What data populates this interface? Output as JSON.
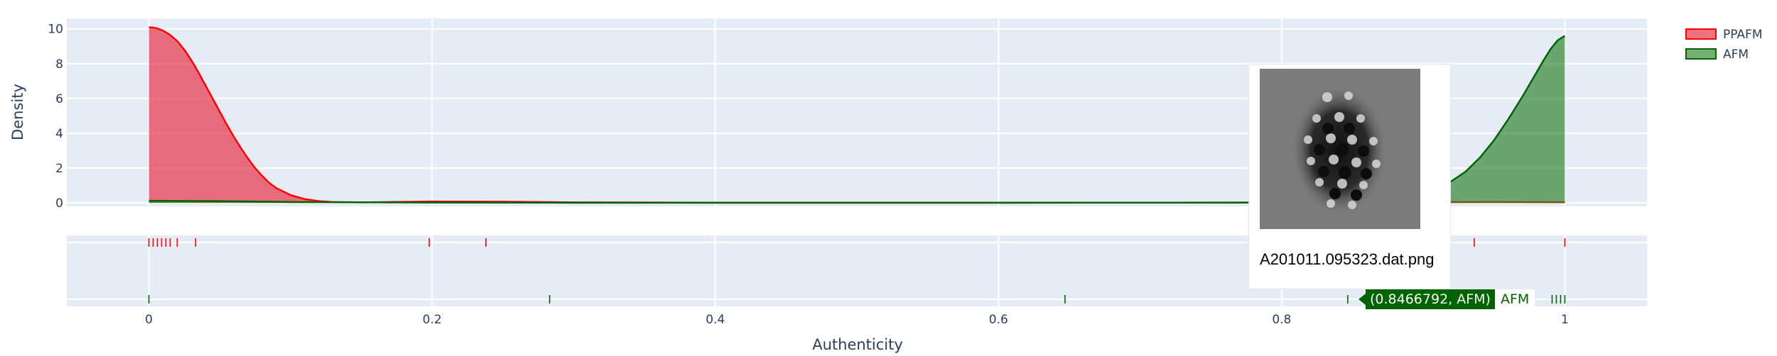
{
  "chart_data": {
    "type": "area",
    "xlabel": "Authenticity",
    "ylabel": "Density",
    "xlim": [
      -0.058,
      1.058
    ],
    "ylim": [
      -0.2,
      10.6
    ],
    "x_ticks": [
      "0",
      "0.2",
      "0.4",
      "0.6",
      "0.8",
      "1"
    ],
    "y_ticks": [
      "0",
      "2",
      "4",
      "6",
      "8",
      "10"
    ],
    "grid": true,
    "legend_position": "top-right",
    "series": [
      {
        "name": "PPAFM",
        "color": "#ff0000",
        "fill": "rgba(230,40,60,0.65)",
        "density": [
          [
            0,
            10.1
          ],
          [
            0.005,
            10.05
          ],
          [
            0.01,
            9.9
          ],
          [
            0.015,
            9.65
          ],
          [
            0.02,
            9.3
          ],
          [
            0.025,
            8.8
          ],
          [
            0.03,
            8.2
          ],
          [
            0.035,
            7.5
          ],
          [
            0.04,
            6.75
          ],
          [
            0.045,
            6.0
          ],
          [
            0.05,
            5.25
          ],
          [
            0.055,
            4.5
          ],
          [
            0.06,
            3.8
          ],
          [
            0.065,
            3.15
          ],
          [
            0.07,
            2.55
          ],
          [
            0.075,
            2.0
          ],
          [
            0.08,
            1.55
          ],
          [
            0.085,
            1.15
          ],
          [
            0.09,
            0.85
          ],
          [
            0.1,
            0.45
          ],
          [
            0.11,
            0.22
          ],
          [
            0.12,
            0.1
          ],
          [
            0.13,
            0.05
          ],
          [
            0.15,
            0.03
          ],
          [
            0.2,
            0.08
          ],
          [
            0.25,
            0.07
          ],
          [
            0.3,
            0.03
          ],
          [
            0.4,
            0.01
          ],
          [
            0.6,
            0.01
          ],
          [
            0.8,
            0.02
          ],
          [
            0.9,
            0.04
          ],
          [
            0.95,
            0.05
          ],
          [
            1.0,
            0.04
          ]
        ],
        "rug": [
          0,
          0.003,
          0.006,
          0.009,
          0.012,
          0.015,
          0.02,
          0.033,
          0.198,
          0.238,
          0.936,
          1.0
        ]
      },
      {
        "name": "AFM",
        "color": "#006400",
        "fill": "rgba(40,130,40,0.65)",
        "density": [
          [
            0,
            0.12
          ],
          [
            0.05,
            0.1
          ],
          [
            0.1,
            0.05
          ],
          [
            0.2,
            0.02
          ],
          [
            0.3,
            0.01
          ],
          [
            0.6,
            0.01
          ],
          [
            0.8,
            0.02
          ],
          [
            0.85,
            0.08
          ],
          [
            0.88,
            0.22
          ],
          [
            0.9,
            0.55
          ],
          [
            0.91,
            0.85
          ],
          [
            0.92,
            1.25
          ],
          [
            0.93,
            1.8
          ],
          [
            0.94,
            2.6
          ],
          [
            0.95,
            3.6
          ],
          [
            0.96,
            4.8
          ],
          [
            0.97,
            6.1
          ],
          [
            0.975,
            6.8
          ],
          [
            0.98,
            7.5
          ],
          [
            0.985,
            8.2
          ],
          [
            0.99,
            8.85
          ],
          [
            0.995,
            9.35
          ],
          [
            1.0,
            9.6
          ]
        ],
        "rug": [
          0.0,
          0.283,
          0.647,
          0.8466792,
          0.955,
          0.991,
          0.994,
          0.997,
          1.0
        ]
      }
    ]
  },
  "hover": {
    "text": "(0.8466792, AFM)",
    "name": "AFM"
  },
  "popup": {
    "caption": "A201011.095323.dat.png"
  }
}
